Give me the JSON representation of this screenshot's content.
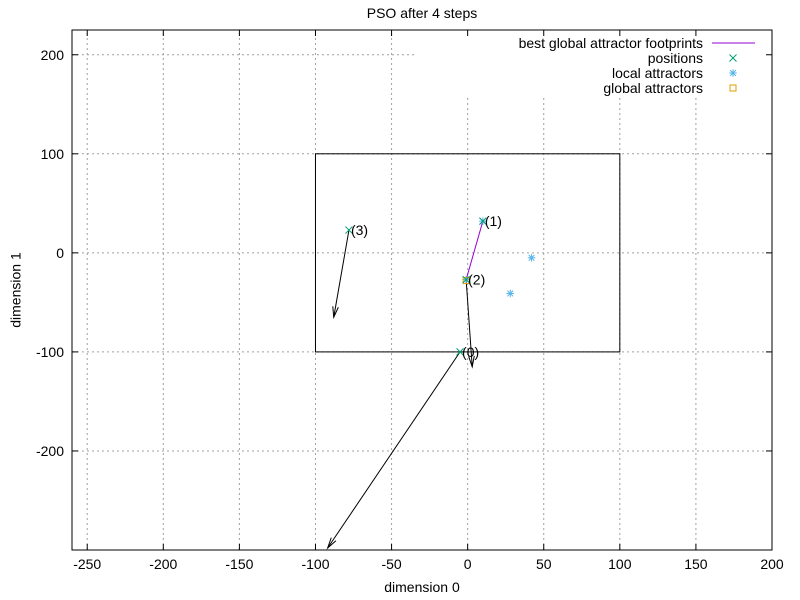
{
  "chart_data": {
    "type": "scatter",
    "title": "PSO after 4 steps",
    "xlabel": "dimension 0",
    "ylabel": "dimension 1",
    "xlim": [
      -260,
      200
    ],
    "ylim": [
      -300,
      225
    ],
    "xticks": [
      -250,
      -200,
      -150,
      -100,
      -50,
      0,
      50,
      100,
      150,
      200
    ],
    "yticks": [
      -200,
      -100,
      0,
      100,
      200
    ],
    "grid": true,
    "legend_position": "top-right",
    "colors": {
      "footprints": "#9400d3",
      "positions": "#009e73",
      "local_attractors": "#56b4e9",
      "global_attractors": "#e69f00"
    },
    "legend": [
      {
        "key": "footprints",
        "label": "best global attractor footprints",
        "marker": "line"
      },
      {
        "key": "positions",
        "label": "positions",
        "marker": "x"
      },
      {
        "key": "local_attractors",
        "label": "local attractors",
        "marker": "asterisk"
      },
      {
        "key": "global_attractors",
        "label": "global attractors",
        "marker": "square"
      }
    ],
    "search_domain": {
      "x": [
        -100,
        100
      ],
      "y": [
        -100,
        100
      ]
    },
    "footprints": [
      [
        -1,
        -27
      ],
      [
        10,
        32
      ]
    ],
    "positions": [
      {
        "label": "(0)",
        "x": -5,
        "y": -100
      },
      {
        "label": "(1)",
        "x": 10,
        "y": 32
      },
      {
        "label": "(2)",
        "x": -1,
        "y": -27
      },
      {
        "label": "(3)",
        "x": -78,
        "y": 23
      }
    ],
    "velocity_arrows": [
      {
        "from": [
          -5,
          -100
        ],
        "to": [
          -92,
          -298
        ]
      },
      {
        "from": [
          -1,
          -27
        ],
        "to": [
          3,
          -115
        ]
      },
      {
        "from": [
          -78,
          23
        ],
        "to": [
          -88,
          -65
        ]
      }
    ],
    "local_attractors": [
      {
        "x": 10,
        "y": 32
      },
      {
        "x": -1,
        "y": -27
      },
      {
        "x": 42,
        "y": -5
      },
      {
        "x": 28,
        "y": -41
      }
    ],
    "global_attractors": [
      {
        "x": -1,
        "y": -28
      }
    ]
  }
}
